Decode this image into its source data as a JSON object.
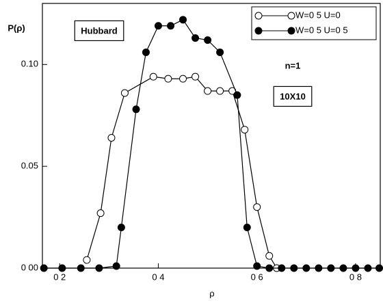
{
  "chart_data": {
    "type": "line",
    "xlabel": "ρ",
    "ylabel": "P(ρ)",
    "xlim": [
      0.165,
      0.85
    ],
    "ylim": [
      0,
      0.13
    ],
    "xticks": [
      {
        "value": 0.2,
        "label": "0 2"
      },
      {
        "value": 0.4,
        "label": "0 4"
      },
      {
        "value": 0.6,
        "label": "0 6"
      },
      {
        "value": 0.8,
        "label": "0 8"
      }
    ],
    "yticks": [
      {
        "value": 0,
        "label": "0 00"
      },
      0.05,
      {
        "value": 0.1,
        "label": "0.10"
      }
    ],
    "legend": "upper right",
    "annotations": [
      {
        "text": "Hubbard"
      },
      {
        "text": "n=1"
      },
      {
        "text": "10X10"
      }
    ],
    "series": [
      {
        "name": "W=0 5  U=0",
        "color": "#000000",
        "marker": "open",
        "x": [
          0.255,
          0.283,
          0.305,
          0.332,
          0.39,
          0.42,
          0.45,
          0.475,
          0.5,
          0.525,
          0.55,
          0.575,
          0.6,
          0.625,
          0.64
        ],
        "values": [
          0.004,
          0.027,
          0.064,
          0.086,
          0.094,
          0.093,
          0.093,
          0.094,
          0.087,
          0.087,
          0.087,
          0.068,
          0.03,
          0.006,
          0
        ]
      },
      {
        "name": "W=0 5  U=0 5",
        "color": "#000000",
        "marker": "filled",
        "x": [
          0.168,
          0.205,
          0.243,
          0.28,
          0.315,
          0.325,
          0.355,
          0.375,
          0.4,
          0.425,
          0.45,
          0.475,
          0.5,
          0.525,
          0.56,
          0.58,
          0.6,
          0.625,
          0.65,
          0.675,
          0.7,
          0.725,
          0.75,
          0.775,
          0.8,
          0.825,
          0.848
        ],
        "values": [
          0,
          0,
          0,
          0,
          0.001,
          0.02,
          0.078,
          0.106,
          0.119,
          0.119,
          0.122,
          0.113,
          0.112,
          0.106,
          0.085,
          0.02,
          0.001,
          0,
          0,
          0,
          0,
          0,
          0,
          0,
          0,
          0,
          0
        ]
      }
    ]
  }
}
